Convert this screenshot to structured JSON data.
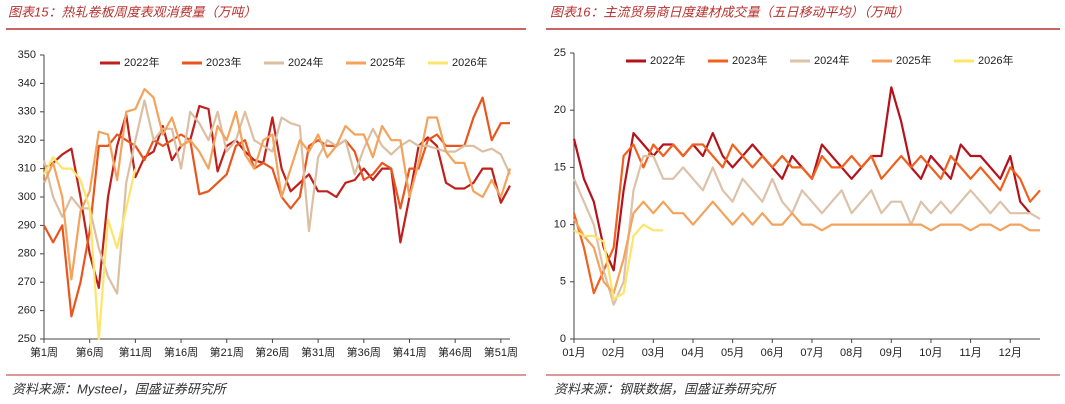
{
  "chart_data": [
    {
      "type": "line",
      "title": "图表15：热轧卷板周度表观消费量（万吨）",
      "source": "资料来源：Mysteel，国盛证券研究所",
      "categories": [
        "第1周",
        null,
        null,
        null,
        null,
        "第6周",
        null,
        null,
        null,
        null,
        "第11周",
        null,
        null,
        null,
        null,
        "第16周",
        null,
        null,
        null,
        null,
        "第21周",
        null,
        null,
        null,
        null,
        "第26周",
        null,
        null,
        null,
        null,
        "第31周",
        null,
        null,
        null,
        null,
        "第36周",
        null,
        null,
        null,
        null,
        "第41周",
        null,
        null,
        null,
        null,
        "第46周",
        null,
        null,
        null,
        null,
        "第51周",
        null
      ],
      "ylim": [
        250,
        350
      ],
      "yticks": [
        250,
        260,
        270,
        280,
        290,
        300,
        310,
        320,
        330,
        340,
        350
      ],
      "series": [
        {
          "name": "2022年",
          "color": "#c0201c",
          "values": [
            310,
            312,
            315,
            317,
            300,
            280,
            268,
            300,
            318,
            329,
            307,
            314,
            316,
            325,
            313,
            318,
            320,
            332,
            331,
            309,
            318,
            320,
            316,
            313,
            312,
            328,
            310,
            302,
            305,
            308,
            302,
            302,
            300,
            305,
            306,
            310,
            306,
            310,
            310,
            284,
            300,
            318,
            321,
            318,
            305,
            303,
            303,
            305,
            310,
            310,
            298,
            304
          ]
        },
        {
          "name": "2023年",
          "color": "#e8561e",
          "values": [
            290,
            284,
            290,
            258,
            270,
            288,
            318,
            318,
            322,
            320,
            318,
            313,
            320,
            318,
            320,
            322,
            320,
            301,
            302,
            305,
            308,
            318,
            320,
            310,
            312,
            310,
            300,
            296,
            300,
            318,
            320,
            318,
            318,
            320,
            316,
            306,
            308,
            312,
            310,
            296,
            310,
            310,
            320,
            322,
            318,
            318,
            318,
            328,
            335,
            320,
            326,
            326
          ]
        },
        {
          "name": "2024年",
          "color": "#dcbfa2",
          "values": [
            313,
            300,
            293,
            300,
            296,
            296,
            282,
            272,
            266,
            305,
            320,
            334,
            320,
            324,
            324,
            310,
            330,
            326,
            320,
            330,
            316,
            320,
            330,
            320,
            318,
            316,
            328,
            326,
            325,
            288,
            314,
            320,
            318,
            320,
            308,
            317,
            324,
            318,
            315,
            318,
            320,
            318,
            318,
            317,
            316,
            316,
            318,
            318,
            316,
            317,
            315,
            308
          ]
        },
        {
          "name": "2025年",
          "color": "#f4a25c",
          "values": [
            305,
            312,
            300,
            271,
            295,
            302,
            323,
            322,
            306,
            330,
            331,
            338,
            335,
            322,
            328,
            318,
            320,
            316,
            310,
            325,
            320,
            330,
            315,
            310,
            320,
            322,
            300,
            310,
            320,
            316,
            322,
            314,
            318,
            325,
            322,
            322,
            314,
            325,
            320,
            320,
            300,
            312,
            328,
            328,
            316,
            312,
            312,
            302,
            300,
            306,
            300,
            310
          ]
        },
        {
          "name": "2026年",
          "color": "#fde46a",
          "values": [
            308,
            314,
            310,
            310,
            306,
            296,
            250,
            292,
            282,
            296,
            310,
            null,
            null,
            null,
            null,
            null,
            null,
            null,
            null,
            null,
            null,
            null,
            null,
            null,
            null,
            null,
            null,
            null,
            null,
            null,
            null,
            null,
            null,
            null,
            null,
            null,
            null,
            null,
            null,
            null,
            null,
            null,
            null,
            null,
            null,
            null,
            null,
            null,
            null,
            null,
            null,
            null
          ]
        }
      ]
    },
    {
      "type": "line",
      "title": "图表16：主流贸易商日度建材成交量（五日移动平均）（万吨）",
      "source": "资料来源：钢联数据，国盛证券研究所",
      "categories": [
        "01月",
        null,
        null,
        null,
        "02月",
        null,
        null,
        null,
        "03月",
        null,
        null,
        null,
        "04月",
        null,
        null,
        null,
        "05月",
        null,
        null,
        null,
        "06月",
        null,
        null,
        null,
        "07月",
        null,
        null,
        null,
        "08月",
        null,
        null,
        null,
        "09月",
        null,
        null,
        null,
        "10月",
        null,
        null,
        null,
        "11月",
        null,
        null,
        null,
        "12月",
        null,
        null,
        null
      ],
      "ylim": [
        0,
        25
      ],
      "yticks": [
        0,
        5,
        10,
        15,
        20,
        25
      ],
      "series": [
        {
          "name": "2022年",
          "color": "#b5121b",
          "values": [
            17.5,
            14,
            12,
            8,
            6,
            13,
            18,
            17,
            16,
            17,
            17,
            16,
            17,
            16,
            18,
            16,
            15,
            16,
            17,
            16,
            15,
            14,
            16,
            15,
            14,
            17,
            16,
            15,
            14,
            15,
            16,
            16,
            22,
            19,
            15,
            14,
            16,
            15,
            14,
            17,
            16,
            16,
            15,
            14,
            16,
            12,
            11,
            null
          ]
        },
        {
          "name": "2023年",
          "color": "#f0601e",
          "values": [
            11,
            8,
            4,
            6,
            8,
            16,
            17,
            15,
            17,
            16,
            17,
            16,
            17,
            17,
            16,
            15,
            17,
            16,
            15,
            16,
            15,
            16,
            15,
            15,
            14,
            16,
            15,
            15,
            16,
            15,
            16,
            14,
            15,
            16,
            15,
            16,
            15,
            14,
            16,
            15,
            14,
            15,
            14,
            13,
            15,
            14,
            12,
            13
          ]
        },
        {
          "name": "2024年",
          "color": "#dcc2a8",
          "values": [
            14,
            12,
            10,
            6,
            3,
            5,
            13,
            16,
            16,
            14,
            14,
            15,
            14,
            13,
            15,
            13,
            12,
            14,
            13,
            12,
            14,
            12,
            11,
            13,
            12,
            11,
            12,
            13,
            11,
            12,
            13,
            11,
            12,
            12,
            10,
            12,
            11,
            12,
            11,
            12,
            13,
            12,
            11,
            12,
            11,
            11,
            11,
            10.5
          ]
        },
        {
          "name": "2025年",
          "color": "#f4a25c",
          "values": [
            10.5,
            9,
            8,
            5,
            4,
            7,
            11,
            12,
            11,
            12,
            11,
            11,
            10,
            11,
            12,
            11,
            10,
            11,
            10,
            11,
            10,
            10,
            11,
            10,
            10,
            9.5,
            10,
            10,
            10,
            10,
            10,
            10,
            10,
            10,
            10,
            10,
            9.5,
            10,
            10,
            10,
            9.5,
            10,
            10,
            9.5,
            10,
            10,
            9.5,
            9.5
          ]
        },
        {
          "name": "2026年",
          "color": "#fde46a",
          "values": [
            9.5,
            9,
            9,
            8.5,
            3.5,
            4,
            9,
            10,
            9.5,
            9.5,
            null,
            null,
            null,
            null,
            null,
            null,
            null,
            null,
            null,
            null,
            null,
            null,
            null,
            null,
            null,
            null,
            null,
            null,
            null,
            null,
            null,
            null,
            null,
            null,
            null,
            null,
            null,
            null,
            null,
            null,
            null,
            null,
            null,
            null,
            null,
            null,
            null,
            null
          ]
        }
      ]
    }
  ]
}
